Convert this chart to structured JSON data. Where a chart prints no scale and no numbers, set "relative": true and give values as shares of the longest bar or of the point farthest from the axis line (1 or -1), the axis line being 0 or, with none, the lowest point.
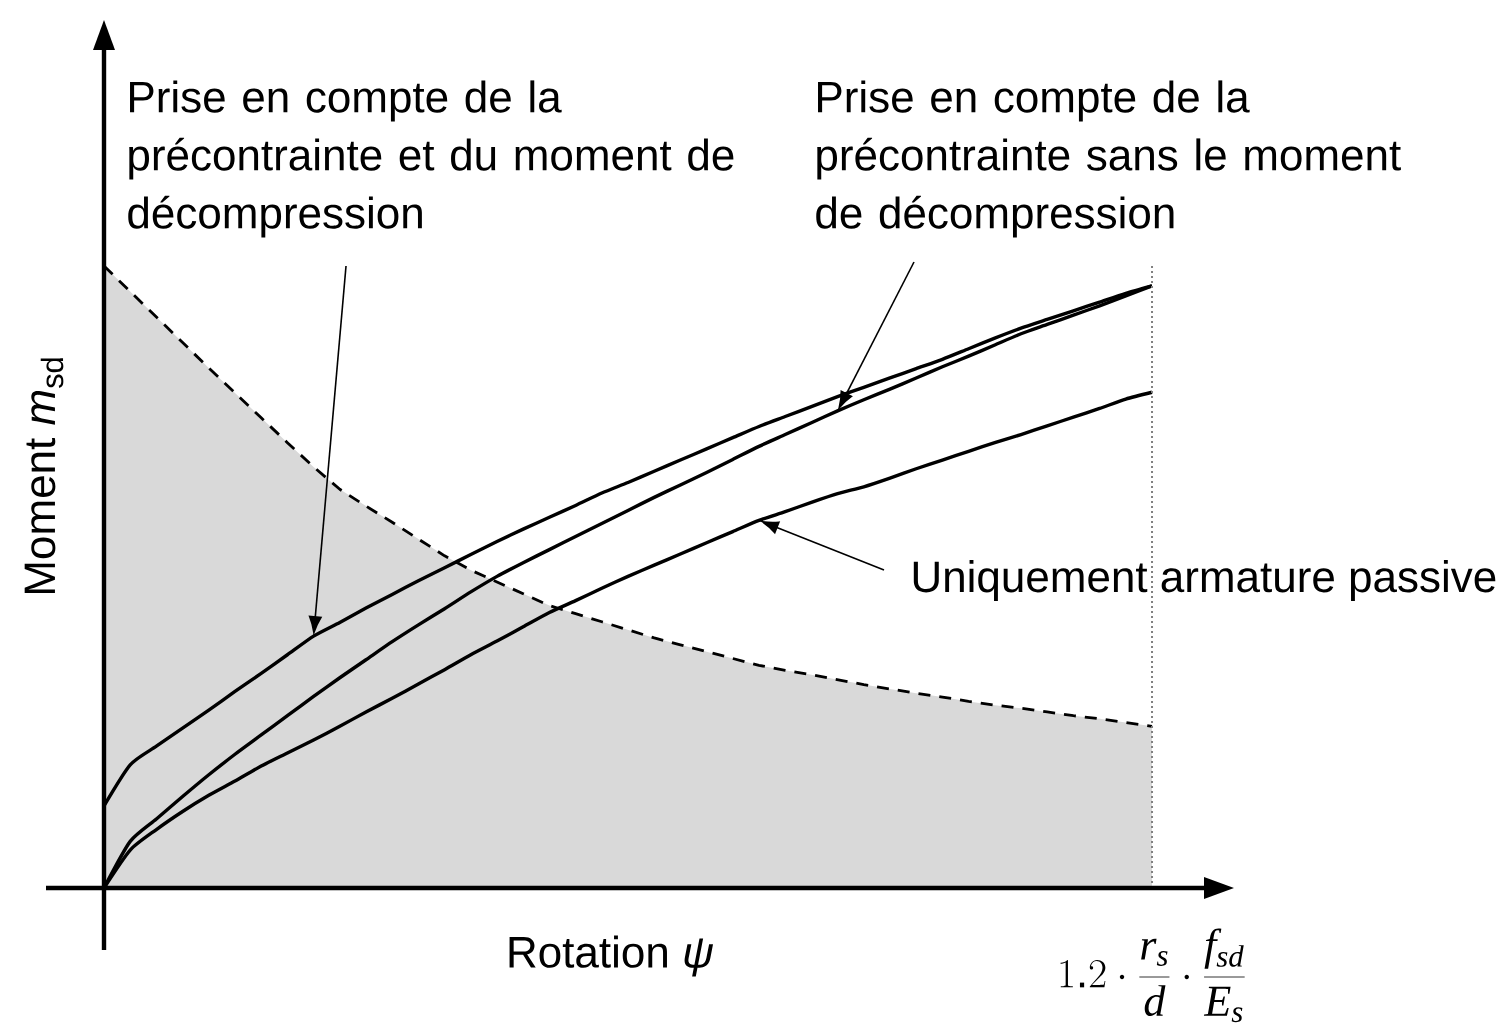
{
  "chart_data": {
    "type": "line",
    "relative": true,
    "marker": "none",
    "line_style": "solid",
    "xlabel": "Rotation *ψ*",
    "ylabel": "Moment *m*$_{sd}$",
    "categories": [
      null,
      null,
      null,
      null,
      null,
      null,
      null,
      null,
      null,
      null,
      null,
      null,
      null,
      null,
      null,
      null,
      null,
      null,
      null,
      null,
      null,
      null,
      null,
      null,
      null,
      null,
      null,
      null,
      null,
      null,
      null,
      null,
      null,
      null,
      null,
      null,
      null,
      null,
      null,
      null,
      null
    ],
    "series": [
      {
        "type": "area",
        "color": "#d9d9d9",
        "line_style": "dashed",
        "values": [
          1,
          0.959,
          0.918,
          0.877,
          0.836,
          0.796,
          0.756,
          0.716,
          0.677,
          0.641,
          0.614,
          0.588,
          0.561,
          0.534,
          0.511,
          0.492,
          0.473,
          0.454,
          0.441,
          0.428,
          0.415,
          0.402,
          0.391,
          0.38,
          0.369,
          0.358,
          0.35,
          0.343,
          0.335,
          0.327,
          0.32,
          0.313,
          0.307,
          0.3,
          0.294,
          0.289,
          0.283,
          0.277,
          0.272,
          0.266,
          0.26
        ]
      },
      {
        "color": "#000000",
        "values": [
          0.132,
          0.198,
          0.228,
          0.257,
          0.286,
          0.316,
          0.345,
          0.375,
          0.405,
          0.427,
          0.45,
          0.472,
          0.494,
          0.515,
          0.536,
          0.557,
          0.577,
          0.596,
          0.615,
          0.635,
          0.652,
          0.67,
          0.688,
          0.706,
          0.724,
          0.742,
          0.758,
          0.774,
          0.79,
          0.805,
          0.82,
          0.835,
          0.85,
          0.867,
          0.884,
          0.9,
          0.914,
          0.928,
          0.942,
          0.956,
          0.968
        ]
      },
      {
        "color": "#000000",
        "values": [
          0,
          0.075,
          0.111,
          0.147,
          0.182,
          0.215,
          0.246,
          0.277,
          0.308,
          0.338,
          0.367,
          0.396,
          0.423,
          0.449,
          0.476,
          0.501,
          0.523,
          0.544,
          0.565,
          0.586,
          0.607,
          0.628,
          0.648,
          0.668,
          0.689,
          0.71,
          0.729,
          0.748,
          0.767,
          0.785,
          0.802,
          0.82,
          0.838,
          0.855,
          0.873,
          0.891,
          0.906,
          0.921,
          0.936,
          0.952,
          0.968
        ]
      },
      {
        "color": "#000000",
        "values": [
          0,
          0.061,
          0.094,
          0.123,
          0.149,
          0.172,
          0.196,
          0.217,
          0.238,
          0.26,
          0.283,
          0.305,
          0.328,
          0.351,
          0.375,
          0.397,
          0.42,
          0.443,
          0.462,
          0.482,
          0.501,
          0.519,
          0.537,
          0.555,
          0.573,
          0.591,
          0.605,
          0.62,
          0.634,
          0.645,
          0.659,
          0.674,
          0.688,
          0.702,
          0.716,
          0.729,
          0.743,
          0.757,
          0.771,
          0.786,
          0.797
        ]
      }
    ],
    "ref_lines": [
      {
        "axis": "x",
        "color": "#808080",
        "line_style": "dotted",
        "label": "1.2\\cdot\\frac{r_s}{d}\\cdot\\frac{f_{sd}}{E_s}"
      }
    ],
    "annotations": [
      "Prise en compte de la précontrainte et du moment de décompression",
      "Prise en compte de la précontrainte sans le moment de décompression",
      "Uniquement armature passive"
    ]
  }
}
